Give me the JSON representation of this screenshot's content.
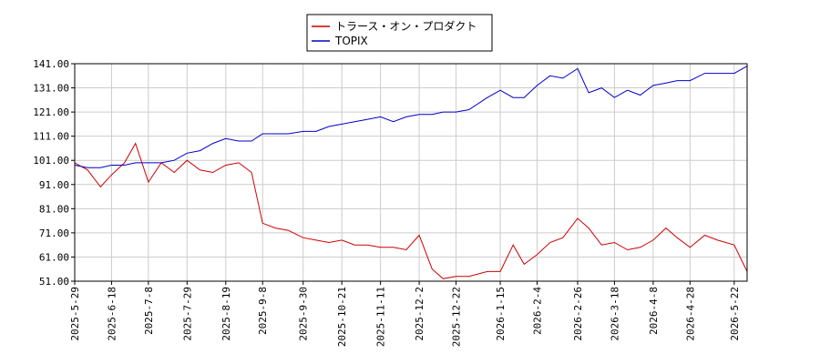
{
  "chart_data": {
    "type": "line",
    "legend": {
      "placement": "top-center",
      "entries": [
        "トラース・オン・プロダクト",
        "TOPIX"
      ]
    },
    "y_ticks": [
      "141.00",
      "131.00",
      "121.00",
      "111.00",
      "101.00",
      "91.00",
      "81.00",
      "71.00",
      "61.00",
      "51.00"
    ],
    "x_ticks": [
      "2025-5-29",
      "2025-6-18",
      "2025-7-8",
      "2025-7-29",
      "2025-8-19",
      "2025-9-8",
      "2025-9-30",
      "2025-10-21",
      "2025-11-11",
      "2025-12-2",
      "2025-12-22",
      "2026-1-15",
      "2026-2-4",
      "2026-2-26",
      "2026-3-18",
      "2026-4-8",
      "2026-4-28",
      "2026-5-22"
    ],
    "ylim": [
      51,
      141
    ],
    "grid": true,
    "x": [
      "2025-05-29",
      "2025-06-05",
      "2025-06-12",
      "2025-06-18",
      "2025-06-25",
      "2025-07-01",
      "2025-07-08",
      "2025-07-15",
      "2025-07-22",
      "2025-07-29",
      "2025-08-05",
      "2025-08-12",
      "2025-08-19",
      "2025-08-26",
      "2025-09-02",
      "2025-09-08",
      "2025-09-15",
      "2025-09-22",
      "2025-09-30",
      "2025-10-07",
      "2025-10-14",
      "2025-10-21",
      "2025-10-28",
      "2025-11-04",
      "2025-11-11",
      "2025-11-18",
      "2025-11-25",
      "2025-12-02",
      "2025-12-09",
      "2025-12-15",
      "2025-12-22",
      "2025-12-29",
      "2026-01-08",
      "2026-01-15",
      "2026-01-22",
      "2026-01-28",
      "2026-02-04",
      "2026-02-11",
      "2026-02-18",
      "2026-02-26",
      "2026-03-04",
      "2026-03-11",
      "2026-03-18",
      "2026-03-25",
      "2026-04-01",
      "2026-04-08",
      "2026-04-15",
      "2026-04-21",
      "2026-04-28",
      "2026-05-06",
      "2026-05-13",
      "2026-05-22",
      "2026-05-29"
    ],
    "series": [
      {
        "name": "トラース・オン・プロダクト",
        "color": "#cc0000",
        "values": [
          100,
          97,
          90,
          95,
          100,
          108,
          92,
          100,
          96,
          101,
          97,
          96,
          99,
          100,
          96,
          75,
          73,
          72,
          69,
          68,
          67,
          68,
          66,
          66,
          65,
          65,
          64,
          70,
          56,
          52,
          53,
          53,
          55,
          55,
          66,
          58,
          62,
          67,
          69,
          77,
          73,
          66,
          67,
          64,
          65,
          68,
          73,
          69,
          65,
          70,
          68,
          66,
          55
        ]
      },
      {
        "name": "TOPIX",
        "color": "#0000cc",
        "values": [
          99,
          98,
          98,
          99,
          99,
          100,
          100,
          100,
          101,
          104,
          105,
          108,
          110,
          109,
          109,
          112,
          112,
          112,
          113,
          113,
          115,
          116,
          117,
          118,
          119,
          117,
          119,
          120,
          120,
          121,
          121,
          122,
          127,
          130,
          127,
          127,
          132,
          136,
          135,
          139,
          129,
          131,
          127,
          130,
          128,
          132,
          133,
          134,
          134,
          137,
          137,
          137,
          140
        ]
      }
    ]
  }
}
